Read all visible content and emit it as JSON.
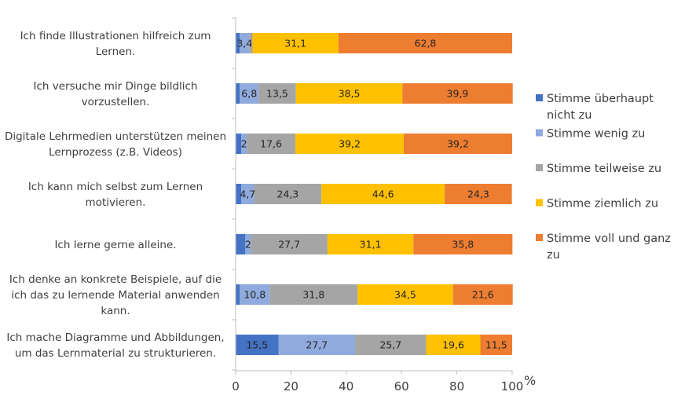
{
  "chart_data": {
    "type": "bar",
    "orientation": "horizontal",
    "stacked": true,
    "categories": [
      [
        "Ich finde Illustrationen hilfreich zum",
        "Lernen."
      ],
      [
        "Ich versuche mir Dinge bildlich",
        "vorzustellen."
      ],
      [
        "Digitale Lehrmedien unterstützen meinen",
        "Lernprozess (z.B. Videos)"
      ],
      [
        "Ich kann mich selbst zum Lernen",
        "motivieren."
      ],
      [
        "Ich lerne gerne alleine."
      ],
      [
        "Ich denke an konkrete Beispiele, auf die",
        "ich das zu lernende Material anwenden",
        "kann."
      ],
      [
        "Ich mache Diagramme und Abbildungen,",
        "um das Lernmaterial zu strukturieren."
      ]
    ],
    "series": [
      {
        "name": "Stimme überhaupt nicht zu",
        "legend_lines": [
          "Stimme überhaupt",
          "nicht zu"
        ],
        "color": "#4472C4",
        "values": [
          1.5,
          1.5,
          2,
          2,
          3.5,
          1.5,
          15.5
        ],
        "labels": [
          "",
          "",
          "",
          "",
          "",
          "",
          "15,5"
        ]
      },
      {
        "name": "Stimme wenig zu",
        "legend_lines": [
          "Stimme wenig zu"
        ],
        "color": "#8FAADC",
        "values": [
          3.4,
          6.8,
          2,
          4.7,
          2,
          10.8,
          27.7
        ],
        "labels": [
          "3,4",
          "6,8",
          "2",
          "4,7",
          "2",
          "10,8",
          "27,7"
        ]
      },
      {
        "name": "Stimme teilweise zu",
        "legend_lines": [
          "Stimme teilweise zu"
        ],
        "color": "#A5A5A5",
        "values": [
          1.2,
          13.5,
          17.6,
          24.3,
          27.7,
          31.8,
          25.7
        ],
        "labels": [
          "",
          "13,5",
          "17,6",
          "24,3",
          "27,7",
          "31,8",
          "25,7"
        ]
      },
      {
        "name": "Stimme ziemlich zu",
        "legend_lines": [
          "Stimme ziemlich zu"
        ],
        "color": "#FFC000",
        "values": [
          31.1,
          38.5,
          39.2,
          44.6,
          31.1,
          34.5,
          19.6
        ],
        "labels": [
          "31,1",
          "38,5",
          "39,2",
          "44,6",
          "31,1",
          "34,5",
          "19,6"
        ]
      },
      {
        "name": "Stimme voll und ganz zu",
        "legend_lines": [
          "Stimme voll und ganz",
          "zu"
        ],
        "color": "#ED7D31",
        "values": [
          62.8,
          39.9,
          39.2,
          24.3,
          35.8,
          21.6,
          11.5
        ],
        "labels": [
          "62,8",
          "39,9",
          "39,2",
          "24,3",
          "35,8",
          "21,6",
          "11,5"
        ]
      }
    ],
    "xlim": [
      0,
      100
    ],
    "xticks": [
      "0",
      "20",
      "40",
      "60",
      "80",
      "100"
    ],
    "x_unit": "%",
    "grid": false,
    "legend_position": "right"
  }
}
